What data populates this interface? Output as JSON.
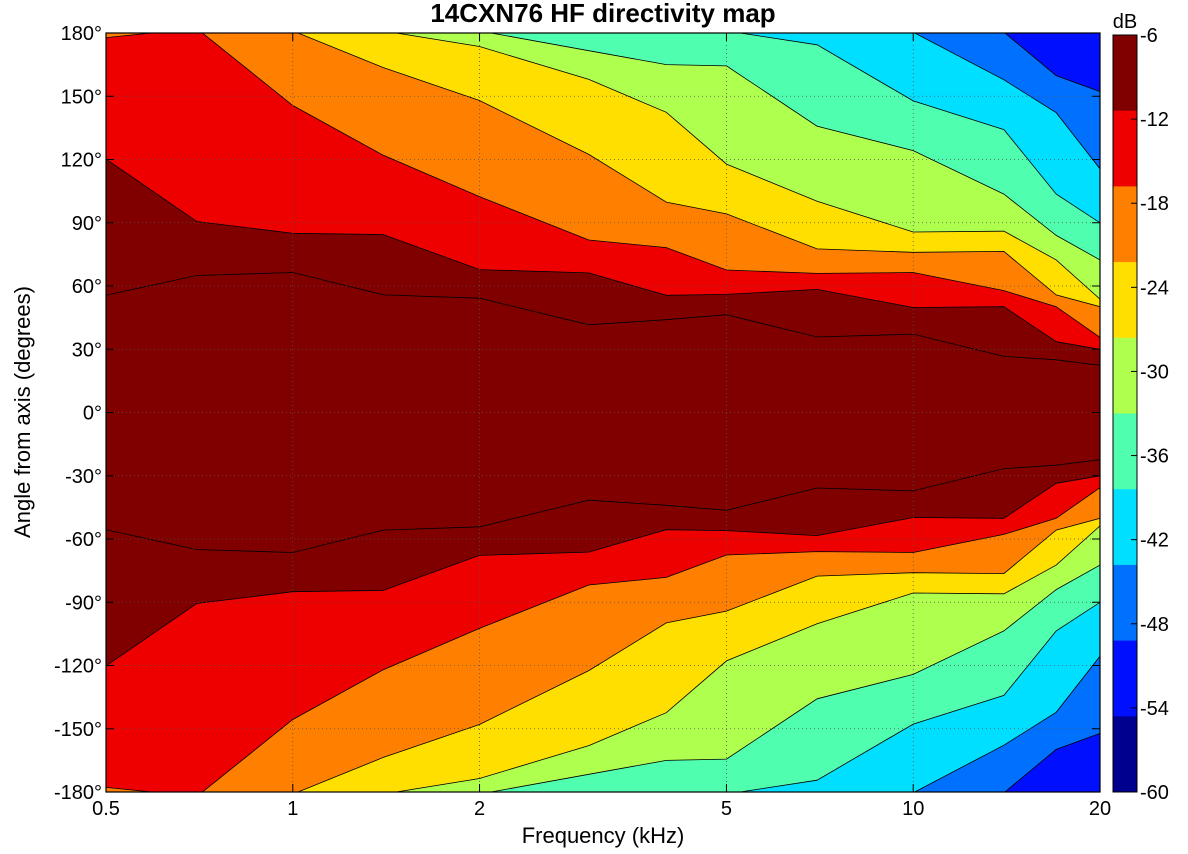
{
  "chart_data": {
    "type": "heatmap",
    "title": "14CXN76 HF directivity map",
    "xlabel": "Frequency (kHz)",
    "ylabel": "Angle from axis (degrees)",
    "x_scale": "log",
    "xlim": [
      0.5,
      20
    ],
    "ylim": [
      -180,
      180
    ],
    "x_ticks": [
      0.5,
      1,
      2,
      5,
      10,
      20
    ],
    "x_tick_labels": [
      "0.5",
      "1",
      "2",
      "5",
      "10",
      "20"
    ],
    "y_ticks": [
      180,
      150,
      120,
      90,
      60,
      30,
      0,
      -30,
      -60,
      -90,
      -120,
      -150,
      -180
    ],
    "y_tick_labels": [
      "180°",
      "150°",
      "120°",
      "90°",
      "60°",
      "30°",
      "0°",
      "-30°",
      "-60°",
      "-90°",
      "-120°",
      "-150°",
      "-180°"
    ],
    "grid": true,
    "colorbar": {
      "unit_label": "dB",
      "min": -60,
      "max": -6,
      "tick_labels": [
        "-6",
        "-12",
        "-18",
        "-24",
        "-30",
        "-36",
        "-42",
        "-48",
        "-54",
        "-60"
      ],
      "levels": [
        -60,
        -54,
        -48,
        -42,
        -36,
        -30,
        -24,
        -18,
        -12,
        -6
      ],
      "colors": [
        "#00008f",
        "#0010ff",
        "#0070ff",
        "#00dfff",
        "#4fffaf",
        "#afff4f",
        "#ffdf00",
        "#ff8000",
        "#ef0000",
        "#800000"
      ]
    },
    "attenuation_profile": {
      "comment": "contour boundaries: angle (degrees off axis) at which level falls below each dB threshold, per frequency",
      "frequencies_khz": [
        0.5,
        0.7,
        1,
        1.4,
        2,
        3,
        4,
        5,
        7,
        10,
        14,
        17,
        20
      ],
      "contours": [
        {
          "level": -6,
          "angles": [
            60,
            65,
            62,
            58,
            52,
            46,
            44,
            42,
            38,
            35,
            31,
            25,
            18
          ]
        },
        {
          "level": -12,
          "angles": [
            118,
            95,
            85,
            80,
            70,
            64,
            60,
            56,
            54,
            52,
            48,
            38,
            30
          ]
        },
        {
          "level": -18,
          "angles": [
            180,
            180,
            150,
            122,
            98,
            84,
            76,
            72,
            66,
            62,
            60,
            48,
            40
          ]
        },
        {
          "level": -24,
          "angles": [
            181,
            181,
            181,
            168,
            148,
            118,
            102,
            92,
            82,
            76,
            72,
            58,
            48
          ]
        },
        {
          "level": -30,
          "angles": [
            181,
            181,
            181,
            181,
            178,
            158,
            138,
            120,
            98,
            90,
            86,
            68,
            56
          ]
        },
        {
          "level": -36,
          "angles": [
            181,
            181,
            181,
            181,
            181,
            176,
            165,
            160,
            138,
            122,
            108,
            84,
            68
          ]
        },
        {
          "level": -42,
          "angles": [
            181,
            181,
            181,
            181,
            181,
            181,
            181,
            181,
            170,
            150,
            132,
            108,
            90
          ]
        },
        {
          "level": -48,
          "angles": [
            181,
            181,
            181,
            181,
            181,
            181,
            181,
            181,
            181,
            176,
            160,
            140,
            120
          ]
        },
        {
          "level": -54,
          "angles": [
            181,
            181,
            181,
            181,
            181,
            181,
            181,
            181,
            181,
            181,
            176,
            162,
            150
          ]
        }
      ]
    }
  }
}
